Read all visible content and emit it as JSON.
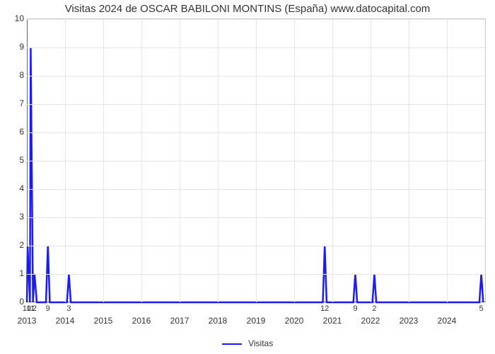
{
  "title": "Visitas 2024 de OSCAR BABILONI MONTINS (España) www.datocapital.com",
  "chart": {
    "type": "line",
    "background_color": "#ffffff",
    "grid_color": "#e5e5e5",
    "axis_color": "#666666",
    "border_color": "#cccccc",
    "line_color": "#1a1aff",
    "line_width": 2.5,
    "title_fontsize": 15,
    "tick_fontsize": 12,
    "legend_label": "Visitas",
    "x": {
      "min": 2013,
      "max": 2025,
      "ticks": [
        2013,
        2014,
        2015,
        2016,
        2017,
        2018,
        2019,
        2020,
        2021,
        2022,
        2023,
        2024
      ]
    },
    "y": {
      "min": 0,
      "max": 10,
      "ticks": [
        0,
        1,
        2,
        3,
        4,
        5,
        6,
        7,
        8,
        9,
        10
      ]
    },
    "annotations": [
      {
        "x": 2013.0,
        "label": "10"
      },
      {
        "x": 2013.1,
        "label": "11"
      },
      {
        "x": 2013.2,
        "label": "2"
      },
      {
        "x": 2013.55,
        "label": "9"
      },
      {
        "x": 2014.1,
        "label": "3"
      },
      {
        "x": 2020.8,
        "label": "12"
      },
      {
        "x": 2021.6,
        "label": "9"
      },
      {
        "x": 2022.1,
        "label": "2"
      },
      {
        "x": 2024.9,
        "label": "5"
      }
    ],
    "series": [
      {
        "x": 2013.0,
        "y": 0
      },
      {
        "x": 2013.02,
        "y": 2
      },
      {
        "x": 2013.08,
        "y": 0
      },
      {
        "x": 2013.1,
        "y": 9
      },
      {
        "x": 2013.16,
        "y": 0
      },
      {
        "x": 2013.2,
        "y": 1
      },
      {
        "x": 2013.26,
        "y": 0
      },
      {
        "x": 2013.5,
        "y": 0
      },
      {
        "x": 2013.55,
        "y": 2
      },
      {
        "x": 2013.6,
        "y": 0
      },
      {
        "x": 2014.05,
        "y": 0
      },
      {
        "x": 2014.1,
        "y": 1
      },
      {
        "x": 2014.15,
        "y": 0
      },
      {
        "x": 2020.75,
        "y": 0
      },
      {
        "x": 2020.8,
        "y": 2
      },
      {
        "x": 2020.85,
        "y": 0
      },
      {
        "x": 2021.55,
        "y": 0
      },
      {
        "x": 2021.6,
        "y": 1
      },
      {
        "x": 2021.65,
        "y": 0
      },
      {
        "x": 2022.05,
        "y": 0
      },
      {
        "x": 2022.1,
        "y": 1
      },
      {
        "x": 2022.15,
        "y": 0
      },
      {
        "x": 2024.85,
        "y": 0
      },
      {
        "x": 2024.9,
        "y": 1
      },
      {
        "x": 2024.95,
        "y": 0
      }
    ]
  }
}
